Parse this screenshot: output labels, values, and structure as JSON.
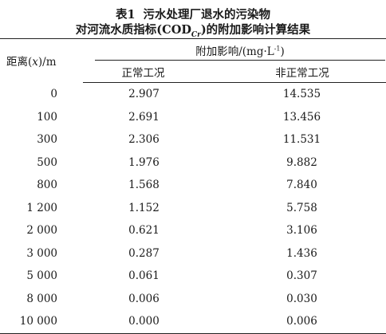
{
  "caption": {
    "number": "表1",
    "line1": "污水处理厂退水的污染物",
    "line2_before": "对河流水质指标(COD",
    "line2_sub": "Cr",
    "line2_after": ")的附加影响计算结果"
  },
  "header": {
    "distance_prefix": "距离(",
    "distance_var": "x",
    "distance_suffix": ")/m",
    "group_label": "附加影响/(mg·L",
    "group_sup": "-1",
    "group_close": ")",
    "normal": "正常工况",
    "abnormal": "非正常工况"
  },
  "rows": [
    {
      "distance": "0",
      "normal": "2.907",
      "abnormal": "14.535"
    },
    {
      "distance": "100",
      "normal": "2.691",
      "abnormal": "13.456"
    },
    {
      "distance": "300",
      "normal": "2.306",
      "abnormal": "11.531"
    },
    {
      "distance": "500",
      "normal": "1.976",
      "abnormal": "9.882"
    },
    {
      "distance": "800",
      "normal": "1.568",
      "abnormal": "7.840"
    },
    {
      "distance": "1 200",
      "normal": "1.152",
      "abnormal": "5.758"
    },
    {
      "distance": "2 000",
      "normal": "0.621",
      "abnormal": "3.106"
    },
    {
      "distance": "3 000",
      "normal": "0.287",
      "abnormal": "1.436"
    },
    {
      "distance": "5 000",
      "normal": "0.061",
      "abnormal": "0.307"
    },
    {
      "distance": "8 000",
      "normal": "0.006",
      "abnormal": "0.030"
    },
    {
      "distance": "10 000",
      "normal": "0.000",
      "abnormal": "0.006"
    }
  ]
}
